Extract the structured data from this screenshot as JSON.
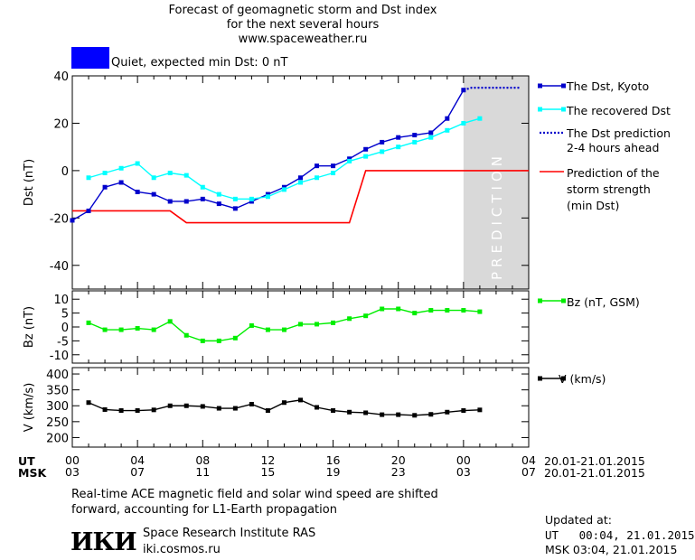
{
  "header": {
    "title_line1": "Forecast of geomagnetic storm and Dst index",
    "title_line2": "for the next several hours",
    "site": "www.spaceweather.ru",
    "status": "Quiet, expected min Dst: 0 nT",
    "status_color": "#0000ff"
  },
  "chart_data": [
    {
      "type": "line",
      "ylabel": "Dst (nT)",
      "ylim": [
        -50,
        40
      ],
      "yticks": [
        40,
        20,
        0,
        -20,
        -40
      ],
      "xlim": [
        0,
        28
      ],
      "prediction_region": {
        "x_start": 24,
        "x_end": 28,
        "label": "PREDICTION",
        "color": "#d9d9d9"
      },
      "series": [
        {
          "name": "The Dst, Kyoto",
          "color": "#0000cc",
          "marker": "square",
          "x": [
            0,
            1,
            2,
            3,
            4,
            5,
            6,
            7,
            8,
            9,
            10,
            11,
            12,
            13,
            14,
            15,
            16,
            17,
            18,
            19,
            20,
            21,
            22,
            23,
            24
          ],
          "y": [
            -21,
            -17,
            -7,
            -5,
            -9,
            -10,
            -13,
            -13,
            -12,
            -14,
            -16,
            -13,
            -10,
            -7,
            -3,
            2,
            2,
            5,
            9,
            12,
            14,
            15,
            16,
            22,
            34
          ]
        },
        {
          "name": "The recovered Dst",
          "color": "#00ffff",
          "marker": "square",
          "x": [
            1,
            2,
            3,
            4,
            5,
            6,
            7,
            8,
            9,
            10,
            11,
            12,
            13,
            14,
            15,
            16,
            17,
            18,
            19,
            20,
            21,
            22,
            23,
            24,
            25
          ],
          "y": [
            -3,
            -1,
            1,
            3,
            -3,
            -1,
            -2,
            -7,
            -10,
            -12,
            -12,
            -11,
            -8,
            -5,
            -3,
            -1,
            4,
            6,
            8,
            10,
            12,
            14,
            17,
            20,
            22
          ]
        },
        {
          "name": "The Dst prediction 2-4 hours ahead",
          "color": "#0000cc",
          "style": "dotted",
          "x": [
            24,
            24.5,
            25,
            25.5,
            26,
            26.5,
            27,
            27.5
          ],
          "y": [
            34,
            35,
            35,
            35,
            35,
            35,
            35,
            35
          ]
        },
        {
          "name": "Prediction of the storm strength (min Dst)",
          "color": "#ff0000",
          "style": "step",
          "x": [
            0,
            6,
            7,
            17,
            18,
            28
          ],
          "y": [
            -17,
            -17,
            -22,
            -22,
            0,
            0
          ]
        }
      ]
    },
    {
      "type": "line",
      "ylabel": "Bz (nT)",
      "ylim": [
        -13,
        13
      ],
      "yticks": [
        10,
        5,
        0,
        -5,
        -10
      ],
      "series": [
        {
          "name": "Bz (nT, GSM)",
          "color": "#00ee00",
          "marker": "square",
          "x": [
            1,
            2,
            3,
            4,
            5,
            6,
            7,
            8,
            9,
            10,
            11,
            12,
            13,
            14,
            15,
            16,
            17,
            18,
            19,
            20,
            21,
            22,
            23,
            24,
            25
          ],
          "y": [
            1.5,
            -1,
            -1,
            -0.5,
            -1,
            2,
            -3,
            -5,
            -5,
            -4,
            0.5,
            -1,
            -1,
            1,
            1,
            1.5,
            3,
            4,
            6.5,
            6.5,
            5,
            6,
            6,
            6,
            5.5
          ]
        }
      ]
    },
    {
      "type": "line",
      "ylabel": "V (km/s)",
      "ylim": [
        170,
        420
      ],
      "yticks": [
        400,
        350,
        300,
        250,
        200
      ],
      "series": [
        {
          "name": "V (km/s)",
          "color": "#000000",
          "marker": "square",
          "x": [
            1,
            2,
            3,
            4,
            5,
            6,
            7,
            8,
            9,
            10,
            11,
            12,
            13,
            14,
            15,
            16,
            17,
            18,
            19,
            20,
            21,
            22,
            23,
            24,
            25
          ],
          "y": [
            310,
            288,
            285,
            285,
            287,
            300,
            300,
            298,
            292,
            292,
            305,
            285,
            310,
            318,
            295,
            285,
            280,
            278,
            272,
            272,
            270,
            273,
            280,
            285,
            287
          ]
        }
      ]
    }
  ],
  "axis": {
    "ut_label": "UT",
    "msk_label": "MSK",
    "ut_ticks": [
      "00",
      "04",
      "08",
      "12",
      "16",
      "20",
      "00",
      "04"
    ],
    "msk_ticks": [
      "03",
      "07",
      "11",
      "15",
      "19",
      "23",
      "03",
      "07"
    ],
    "ut_range": "20.01-21.01.2015",
    "msk_range": "20.01-21.01.2015"
  },
  "legend": {
    "dst_kyoto": "The Dst, Kyoto",
    "recovered": "The recovered Dst",
    "prediction_l1": "The Dst prediction",
    "prediction_l2": "2-4 hours ahead",
    "storm_l1": "Prediction of the",
    "storm_l2": "storm strength",
    "storm_l3": "(min Dst)",
    "bz": "Bz (nT, GSM)",
    "v": "V (km/s)"
  },
  "footer": {
    "note_l1": "Real-time ACE magnetic field and solar wind speed are shifted",
    "note_l2": "forward, accounting for L1-Earth propagation",
    "logo_text": "ИКИ",
    "institute": "Space Research Institute RAS",
    "institute_site": "iki.cosmos.ru",
    "updated_label": "Updated at:",
    "updated_ut": "UT   00:04, 21.01.2015",
    "updated_msk": "MSK 03:04, 21.01.2015"
  }
}
